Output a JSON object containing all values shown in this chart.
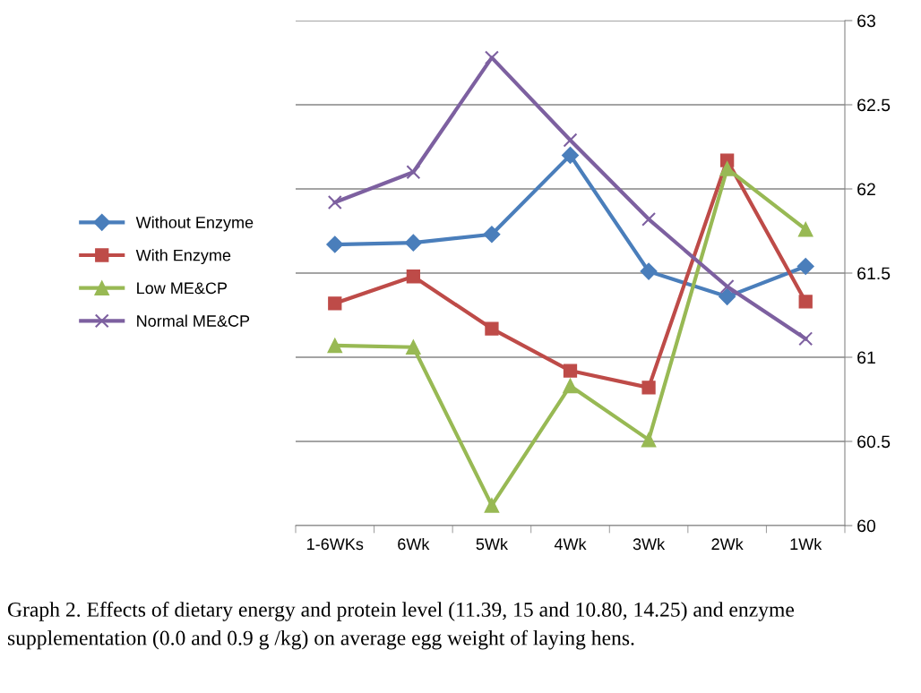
{
  "chart_data": {
    "type": "line",
    "categories": [
      "1-6WKs",
      "6Wk",
      "5Wk",
      "4Wk",
      "3Wk",
      "2Wk",
      "1Wk"
    ],
    "series": [
      {
        "name": "Without Enzyme",
        "color": "#4a7ebb",
        "marker": "diamond",
        "values": [
          61.67,
          61.68,
          61.73,
          62.2,
          61.51,
          61.36,
          61.54
        ]
      },
      {
        "name": "With Enzyme",
        "color": "#be4b48",
        "marker": "square",
        "values": [
          61.32,
          61.48,
          61.17,
          60.92,
          60.82,
          62.17,
          61.33
        ]
      },
      {
        "name": "Low ME&CP",
        "color": "#98b954",
        "marker": "triangle",
        "values": [
          61.07,
          61.06,
          60.12,
          60.83,
          60.51,
          62.12,
          61.76
        ]
      },
      {
        "name": "Normal ME&CP",
        "color": "#7d60a0",
        "marker": "cross",
        "values": [
          61.92,
          62.1,
          62.78,
          62.29,
          61.82,
          61.42,
          61.11
        ]
      }
    ],
    "ylim": [
      60,
      63
    ],
    "yticks": [
      60,
      60.5,
      61,
      61.5,
      62,
      62.5,
      63
    ],
    "grid": "y",
    "legend": "left",
    "line_style": "solid",
    "annotations": [
      "Graph 2. Effects of dietary energy and protein level (11.39, 15 and 10.80, 14.25) and enzyme supplementation (0.0 and 0.9 g /kg) on average egg weight of laying hens."
    ]
  }
}
